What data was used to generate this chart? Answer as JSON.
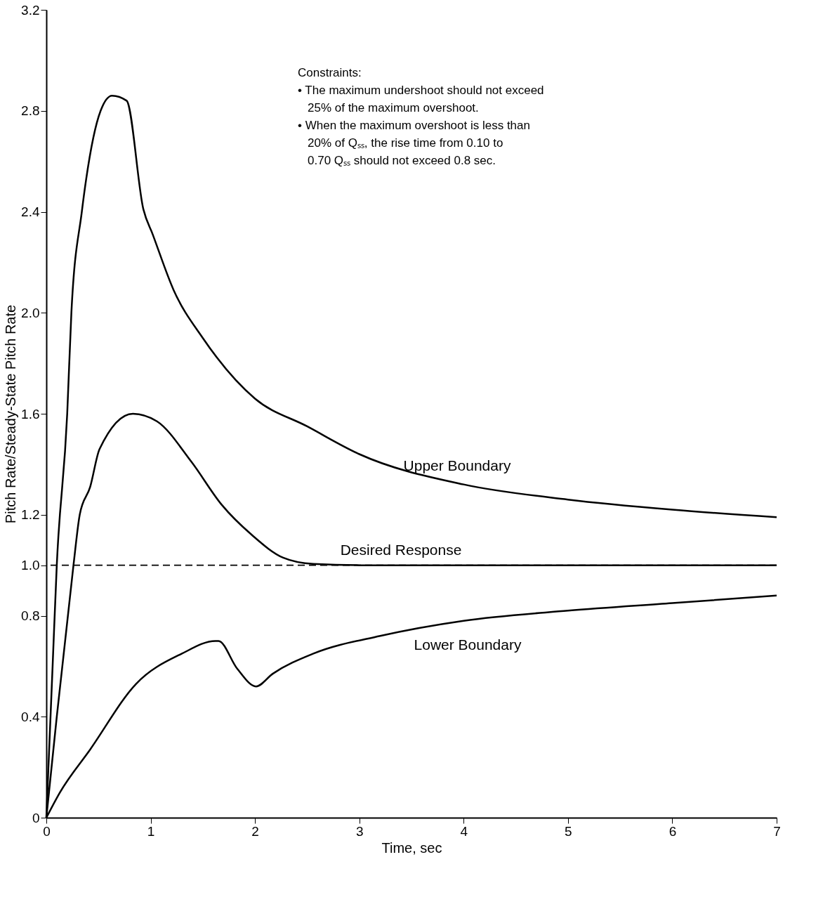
{
  "chart_data": {
    "type": "line",
    "xlabel": "Time, sec",
    "ylabel": "Pitch Rate/Steady-State Pitch Rate",
    "xlim": [
      0,
      7
    ],
    "ylim": [
      0,
      3.2
    ],
    "xticks": [
      0,
      1,
      2,
      3,
      4,
      5,
      6,
      7
    ],
    "yticks": [
      0,
      0.4,
      0.8,
      {
        "value": 1,
        "label": "1.0"
      },
      1.2,
      1.6,
      {
        "value": 2,
        "label": "2.0"
      },
      2.4,
      2.8,
      3.2
    ],
    "grid": false,
    "marker": "none",
    "line_style": "solid",
    "series": [
      {
        "name": "Upper Boundary",
        "color": "#000000",
        "x": [
          0,
          0.06,
          0.1,
          0.2,
          0.24,
          0.34,
          0.52,
          0.63,
          0.77,
          0.93,
          1.02,
          1.22,
          1.5,
          2,
          2.5,
          3,
          4,
          5,
          6,
          7
        ],
        "values": [
          0,
          0.6,
          1.0,
          1.6,
          2.0,
          2.4,
          2.8,
          2.86,
          2.84,
          2.41,
          2.31,
          2.09,
          1.9,
          1.66,
          1.55,
          1.44,
          1.32,
          1.26,
          1.22,
          1.19
        ]
      },
      {
        "name": "Desired Response",
        "color": "#000000",
        "x": [
          0,
          0.1,
          0.26,
          0.32,
          0.42,
          0.51,
          0.83,
          1.06,
          1.39,
          1.68,
          1.97,
          2.27,
          2.56,
          3,
          4,
          5,
          6,
          7
        ],
        "values": [
          0,
          0.4,
          1.0,
          1.2,
          1.31,
          1.46,
          1.6,
          1.57,
          1.41,
          1.24,
          1.12,
          1.03,
          1.005,
          1.0,
          1.0,
          1.0,
          1.0,
          1.0
        ]
      },
      {
        "name": "Lower Boundary",
        "color": "#000000",
        "x": [
          0,
          0.13,
          0.42,
          0.86,
          1.3,
          1.62,
          1.65,
          1.83,
          2.01,
          2.17,
          2.56,
          3.2,
          4,
          5,
          6,
          7
        ],
        "values": [
          0,
          0.1,
          0.27,
          0.53,
          0.65,
          0.7,
          0.7,
          0.59,
          0.52,
          0.57,
          0.65,
          0.72,
          0.78,
          0.82,
          0.85,
          0.88
        ]
      }
    ],
    "ref_lines": [
      {
        "axis": "y",
        "value": 1.0,
        "line_style": "dashed",
        "color": "#000000"
      }
    ],
    "annotations": [
      "Constraints:",
      "• The maximum undershoot should not exceed",
      "25% of the maximum overshoot.",
      "• When the maximum overshoot is less than",
      "20% of Qₛₛ, the rise time from 0.10 to",
      "0.70 Qₛₛ should not exceed 0.8 sec."
    ]
  }
}
